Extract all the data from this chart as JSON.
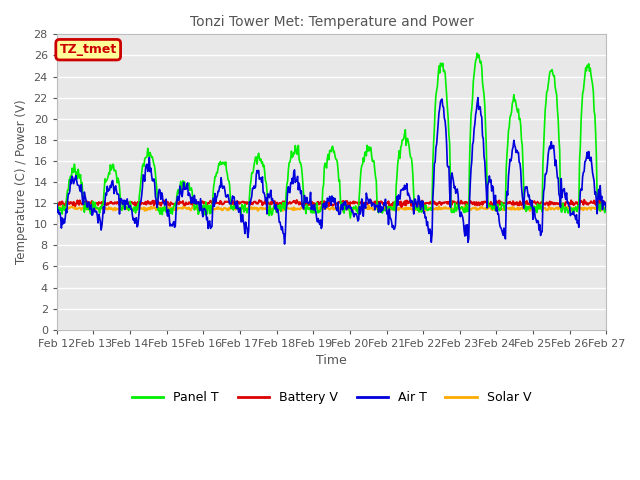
{
  "title": "Tonzi Tower Met: Temperature and Power",
  "xlabel": "Time",
  "ylabel": "Temperature (C) / Power (V)",
  "ylim": [
    0,
    28
  ],
  "annotation_text": "TZ_tmet",
  "annotation_color": "#cc0000",
  "annotation_bg": "#ffff99",
  "xtick_labels": [
    "Feb 12",
    "Feb 13",
    "Feb 14",
    "Feb 15",
    "Feb 16",
    "Feb 17",
    "Feb 18",
    "Feb 19",
    "Feb 20",
    "Feb 21",
    "Feb 22",
    "Feb 23",
    "Feb 24",
    "Feb 25",
    "Feb 26",
    "Feb 27"
  ],
  "series": {
    "Panel T": {
      "color": "#00ee00",
      "linewidth": 1.2
    },
    "Battery V": {
      "color": "#dd0000",
      "linewidth": 1.5
    },
    "Air T": {
      "color": "#0000dd",
      "linewidth": 1.2
    },
    "Solar V": {
      "color": "#ffaa00",
      "linewidth": 1.5
    }
  },
  "plot_bg_color": "#e8e8e8",
  "fig_bg_color": "#ffffff",
  "grid_color": "#ffffff",
  "title_color": "#555555",
  "label_color": "#555555",
  "tick_color": "#555555"
}
